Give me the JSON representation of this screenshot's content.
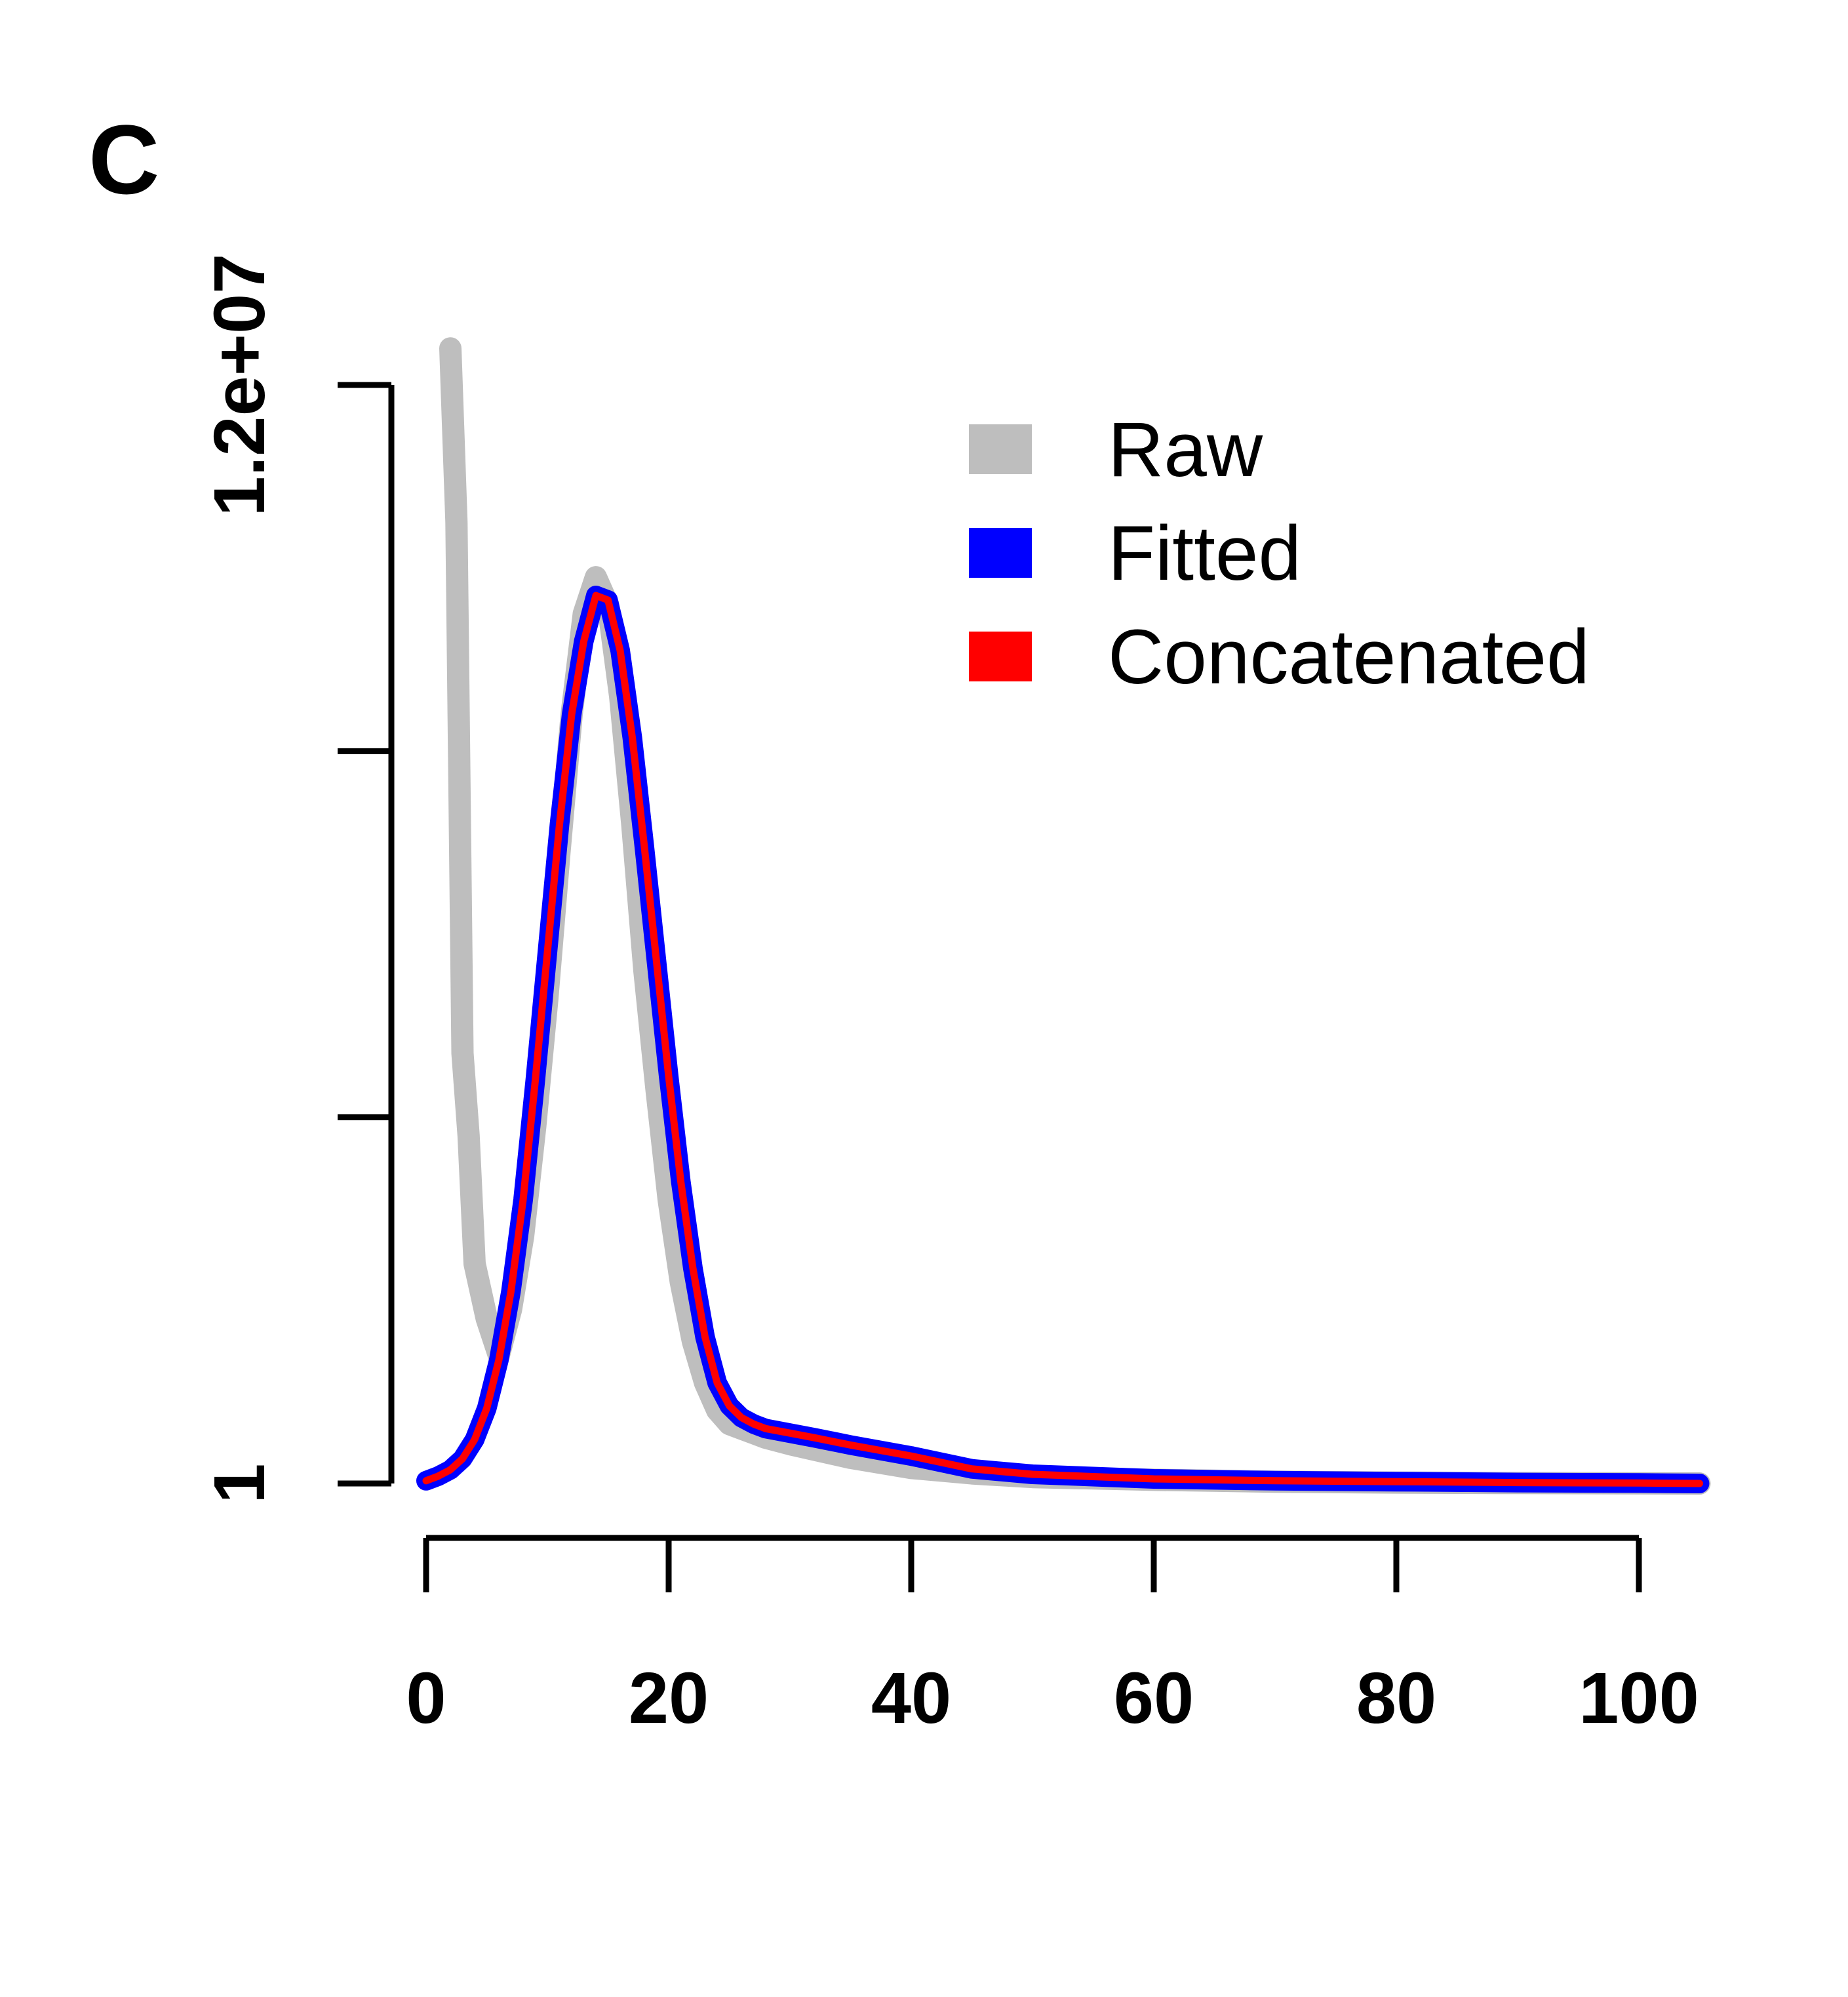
{
  "panel_label": "C",
  "colors": {
    "raw": "#bebebe",
    "fitted": "#0000ff",
    "concatenated": "#ff0000",
    "axis": "#000000"
  },
  "chart_data": {
    "type": "line",
    "title": "",
    "xlabel": "",
    "ylabel": "",
    "xlim": [
      0,
      105
    ],
    "ylim": [
      1,
      12000000
    ],
    "grid": false,
    "legend_position": "top-right",
    "x_ticks": [
      0,
      20,
      40,
      60,
      80,
      100
    ],
    "x_tick_labels": [
      "0",
      "20",
      "40",
      "60",
      "80",
      "100"
    ],
    "y_ticks": [
      1,
      4000000,
      8000000,
      12000000
    ],
    "y_tick_labels": [
      "1",
      "",
      "",
      "1.2e+07"
    ],
    "legend": [
      {
        "label": "Raw",
        "color_key": "raw"
      },
      {
        "label": "Fitted",
        "color_key": "fitted"
      },
      {
        "label": "Concatenated",
        "color_key": "concatenated"
      }
    ],
    "series": [
      {
        "name": "Raw",
        "x": [
          2,
          2.5,
          3,
          3.5,
          4,
          5,
          6,
          7,
          8,
          9,
          10,
          11,
          12,
          13,
          14,
          15,
          16,
          17,
          18,
          19,
          20,
          21,
          22,
          23,
          24,
          25,
          26,
          27,
          28,
          30,
          32,
          35,
          40,
          45,
          50,
          60,
          70,
          80,
          90,
          100,
          105
        ],
        "y": [
          12400000,
          10500000,
          4700000,
          3800000,
          2400000,
          1800000,
          1400000,
          1900000,
          2700000,
          3900000,
          5300000,
          6900000,
          8400000,
          9500000,
          9900000,
          9600000,
          8600000,
          7200000,
          5600000,
          4300000,
          3100000,
          2200000,
          1550000,
          1100000,
          800000,
          650000,
          600000,
          550000,
          500000,
          430000,
          370000,
          280000,
          170000,
          110000,
          70000,
          40000,
          20000,
          10000,
          5000,
          2000,
          1
        ]
      },
      {
        "name": "Fitted",
        "x": [
          0,
          1,
          2,
          3,
          4,
          5,
          6,
          7,
          8,
          9,
          10,
          11,
          12,
          13,
          14,
          15,
          16,
          17,
          18,
          19,
          20,
          21,
          22,
          23,
          24,
          25,
          26,
          27,
          28,
          30,
          32,
          35,
          40,
          45,
          50,
          60,
          70,
          80,
          90,
          100,
          105
        ],
        "y": [
          30000,
          80000,
          150000,
          270000,
          480000,
          820000,
          1350000,
          2100000,
          3100000,
          4400000,
          5800000,
          7200000,
          8400000,
          9200000,
          9700000,
          9650000,
          9100000,
          8150000,
          6950000,
          5700000,
          4450000,
          3300000,
          2350000,
          1600000,
          1100000,
          850000,
          720000,
          650000,
          600000,
          550000,
          500000,
          420000,
          300000,
          160000,
          100000,
          50000,
          30000,
          20000,
          10000,
          5000,
          1
        ]
      },
      {
        "name": "Concatenated",
        "x": [
          0,
          1,
          2,
          3,
          4,
          5,
          6,
          7,
          8,
          9,
          10,
          11,
          12,
          13,
          14,
          15,
          16,
          17,
          18,
          19,
          20,
          21,
          22,
          23,
          24,
          25,
          26,
          27,
          28,
          30,
          32,
          35,
          40,
          45,
          50,
          60,
          70,
          80,
          90,
          100,
          105
        ],
        "y": [
          30000,
          80000,
          150000,
          270000,
          480000,
          820000,
          1350000,
          2100000,
          3100000,
          4400000,
          5800000,
          7200000,
          8400000,
          9200000,
          9700000,
          9650000,
          9100000,
          8150000,
          6950000,
          5700000,
          4450000,
          3300000,
          2350000,
          1600000,
          1100000,
          850000,
          720000,
          650000,
          600000,
          550000,
          500000,
          420000,
          300000,
          160000,
          100000,
          50000,
          30000,
          20000,
          10000,
          5000,
          1
        ]
      }
    ]
  }
}
